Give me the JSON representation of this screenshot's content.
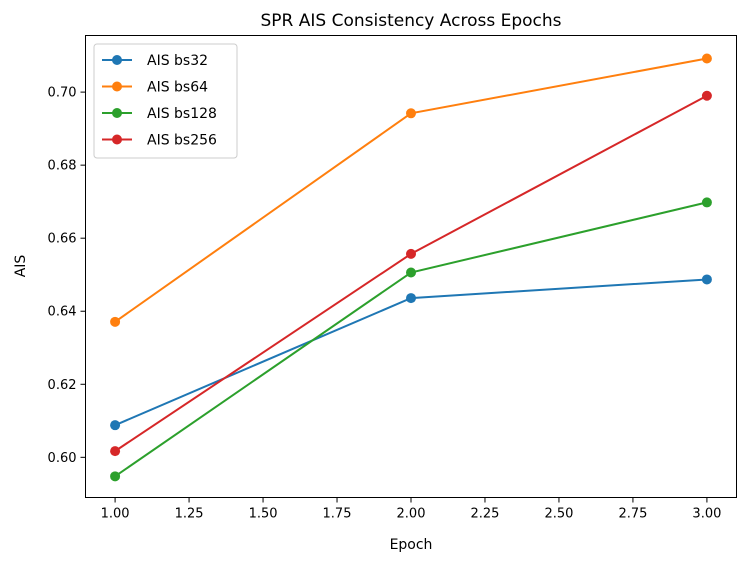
{
  "chart_data": {
    "type": "line",
    "title": "SPR AIS Consistency Across Epochs",
    "xlabel": "Epoch",
    "ylabel": "AIS",
    "x": [
      1.0,
      2.0,
      3.0
    ],
    "xlim": [
      0.9,
      3.1
    ],
    "ylim": [
      0.589,
      0.7155
    ],
    "xticks": [
      1.0,
      1.25,
      1.5,
      1.75,
      2.0,
      2.25,
      2.5,
      2.75,
      3.0
    ],
    "xtick_labels": [
      "1.00",
      "1.25",
      "1.50",
      "1.75",
      "2.00",
      "2.25",
      "2.50",
      "2.75",
      "3.00"
    ],
    "yticks": [
      0.6,
      0.62,
      0.64,
      0.66,
      0.68,
      0.7
    ],
    "ytick_labels": [
      "0.60",
      "0.62",
      "0.64",
      "0.66",
      "0.68",
      "0.70"
    ],
    "grid": false,
    "legend_position": "top-left",
    "series": [
      {
        "name": "AIS bs32",
        "color": "#1f77b4",
        "values": [
          0.6088,
          0.6436,
          0.6487
        ]
      },
      {
        "name": "AIS bs64",
        "color": "#ff7f0e",
        "values": [
          0.6371,
          0.6942,
          0.7092
        ]
      },
      {
        "name": "AIS bs128",
        "color": "#2ca02c",
        "values": [
          0.5948,
          0.6506,
          0.6698
        ]
      },
      {
        "name": "AIS bs256",
        "color": "#d62728",
        "values": [
          0.6017,
          0.6557,
          0.699
        ]
      }
    ]
  }
}
